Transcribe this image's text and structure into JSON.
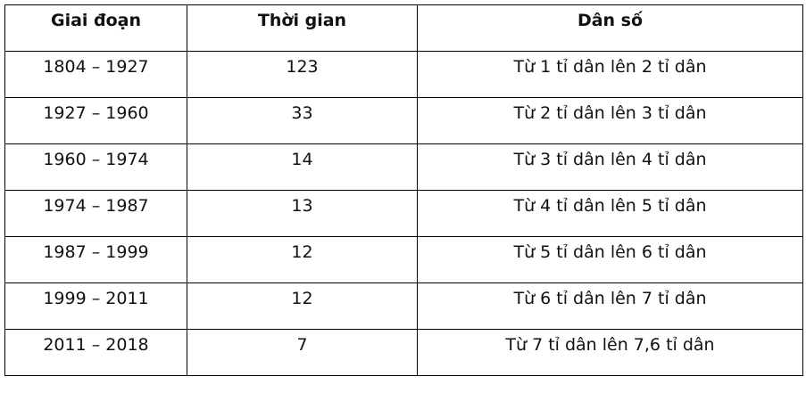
{
  "table": {
    "header": [
      "Giai đoạn",
      "Thời gian",
      "Dân số"
    ],
    "rows": [
      [
        "1804 – 1927",
        "123",
        "Từ 1 tỉ dân lên 2 tỉ dân"
      ],
      [
        "1927 – 1960",
        "33",
        "Từ 2 tỉ dân lên 3 tỉ dân"
      ],
      [
        "1960 – 1974",
        "14",
        "Từ 3 tỉ dân lên 4 tỉ dân"
      ],
      [
        "1974 – 1987",
        "13",
        "Từ 4 tỉ dân lên 5 tỉ dân"
      ],
      [
        "1987 – 1999",
        "12",
        "Từ 5 tỉ dân lên 6 tỉ dân"
      ],
      [
        "1999 – 2011",
        "12",
        "Từ 6 tỉ dân lên 7 tỉ dân"
      ],
      [
        "2011 – 2018",
        "7",
        "Từ 7 tỉ dân lên 7,6 tỉ dân"
      ]
    ]
  }
}
